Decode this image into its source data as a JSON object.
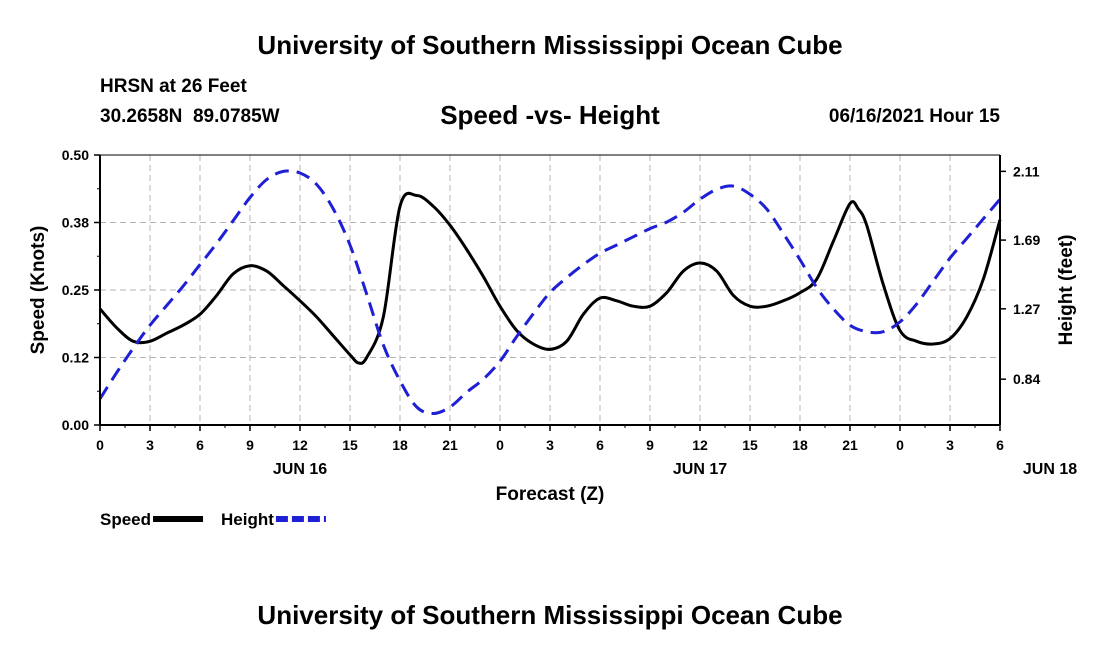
{
  "header": {
    "title": "University of Southern Mississippi Ocean Cube",
    "station": "HRSN at 26 Feet",
    "coords": "30.2658N  89.0785W",
    "chart_title": "Speed -vs- Height",
    "datetime": "06/16/2021 Hour 15"
  },
  "footer": {
    "title": "University of Southern Mississippi Ocean Cube"
  },
  "chart_data": {
    "type": "line",
    "title": "Speed -vs- Height",
    "xlabel": "Forecast (Z)",
    "ylabel": "Speed (Knots)",
    "y2label": "Height (feet)",
    "x_tick_labels": [
      "0",
      "3",
      "6",
      "9",
      "12",
      "15",
      "18",
      "21",
      "0",
      "3",
      "6",
      "9",
      "12",
      "15",
      "18",
      "21",
      "0",
      "3",
      "6"
    ],
    "day_labels": [
      {
        "label": "JUN 16",
        "hour": 12
      },
      {
        "label": "JUN 17",
        "hour": 36
      },
      {
        "label": "JUN 18",
        "hour": 57
      }
    ],
    "xlim": [
      0,
      54
    ],
    "ylim": [
      0,
      0.5
    ],
    "y_ticks": [
      0.0,
      0.125,
      0.25,
      0.375,
      0.5
    ],
    "y_tick_labels": [
      "0.00",
      "0.12",
      "0.25",
      "0.38",
      "0.50"
    ],
    "y2lim": [
      0.56,
      2.21
    ],
    "y2_ticks": [
      0.84,
      1.27,
      1.69,
      2.11
    ],
    "y2_tick_labels": [
      "0.84",
      "1.27",
      "1.69",
      "2.11"
    ],
    "grid": true,
    "legend": "bottom-left",
    "series": [
      {
        "name": "Speed",
        "color": "#000000",
        "dash": "solid",
        "axis": "left",
        "x": [
          0,
          1,
          2,
          3,
          4,
          5,
          6,
          7,
          8,
          9,
          10,
          11,
          12,
          13,
          14,
          15,
          15.5,
          16,
          17,
          18,
          19,
          20,
          21,
          22,
          23,
          24,
          25,
          26,
          27,
          28,
          29,
          30,
          31,
          32,
          33,
          34,
          35,
          36,
          37,
          38,
          39,
          40,
          41,
          42,
          43,
          44,
          45,
          45.5,
          46,
          47,
          48,
          49,
          50,
          51,
          52,
          53,
          54
        ],
        "values": [
          0.215,
          0.18,
          0.155,
          0.155,
          0.17,
          0.185,
          0.205,
          0.24,
          0.28,
          0.295,
          0.285,
          0.258,
          0.23,
          0.2,
          0.165,
          0.13,
          0.115,
          0.125,
          0.2,
          0.405,
          0.425,
          0.405,
          0.37,
          0.325,
          0.275,
          0.22,
          0.175,
          0.15,
          0.14,
          0.155,
          0.205,
          0.235,
          0.23,
          0.22,
          0.22,
          0.245,
          0.285,
          0.3,
          0.285,
          0.24,
          0.22,
          0.22,
          0.23,
          0.245,
          0.27,
          0.34,
          0.41,
          0.4,
          0.37,
          0.26,
          0.175,
          0.155,
          0.15,
          0.16,
          0.2,
          0.27,
          0.38
        ]
      },
      {
        "name": "Height",
        "color": "#1f1fd6",
        "dash": "dashed",
        "axis": "right",
        "x": [
          0,
          1,
          2,
          3,
          4,
          5,
          6,
          7,
          8,
          9,
          10,
          11,
          12,
          13,
          14,
          15,
          16,
          17,
          18,
          19,
          20,
          21,
          22,
          23,
          24,
          25,
          26,
          27,
          28,
          29,
          30,
          31,
          32,
          33,
          34,
          35,
          36,
          37,
          38,
          39,
          40,
          41,
          42,
          43,
          44,
          45,
          46,
          47,
          48,
          49,
          50,
          51,
          52,
          53,
          54
        ],
        "values": [
          0.72,
          0.88,
          1.03,
          1.17,
          1.29,
          1.41,
          1.54,
          1.67,
          1.81,
          1.95,
          2.06,
          2.11,
          2.1,
          2.03,
          1.88,
          1.66,
          1.36,
          1.05,
          0.83,
          0.67,
          0.63,
          0.67,
          0.76,
          0.84,
          0.95,
          1.1,
          1.24,
          1.37,
          1.46,
          1.54,
          1.61,
          1.66,
          1.71,
          1.76,
          1.8,
          1.86,
          1.94,
          2.0,
          2.02,
          1.97,
          1.88,
          1.73,
          1.57,
          1.4,
          1.27,
          1.17,
          1.13,
          1.13,
          1.19,
          1.3,
          1.44,
          1.58,
          1.7,
          1.82,
          1.94
        ]
      }
    ]
  }
}
